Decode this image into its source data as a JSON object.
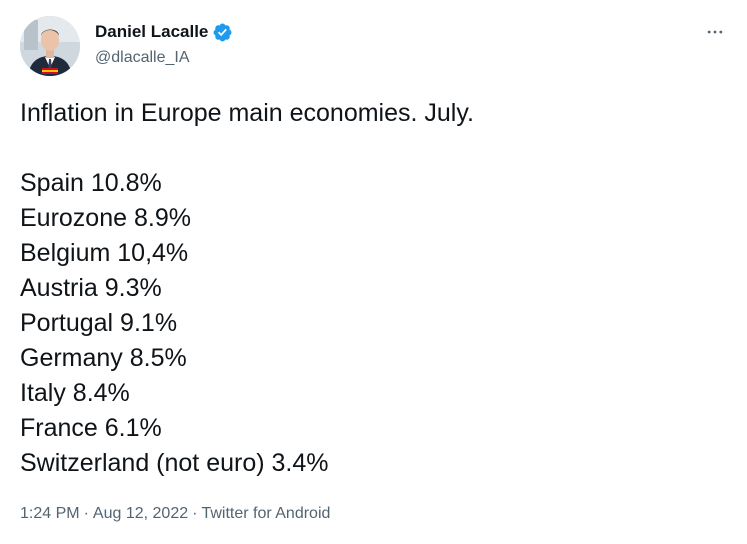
{
  "author": {
    "display_name": "Daniel Lacalle",
    "handle": "@dlacalle_IA",
    "verified": true,
    "verified_color": "#1d9bf0"
  },
  "more_icon": "ellipsis-icon",
  "tweet": {
    "intro": "Inflation in Europe main economies. July.",
    "lines": [
      "Spain 10.8%",
      "Eurozone 8.9%",
      "Belgium 10,4%",
      "Austria 9.3%",
      "Portugal 9.1%",
      "Germany 8.5%",
      "Italy 8.4%",
      "France 6.1%",
      "Switzerland (not euro) 3.4%"
    ]
  },
  "meta": {
    "time": "1:24 PM",
    "date": "Aug 12, 2022",
    "source": "Twitter for Android",
    "separator": "·"
  }
}
